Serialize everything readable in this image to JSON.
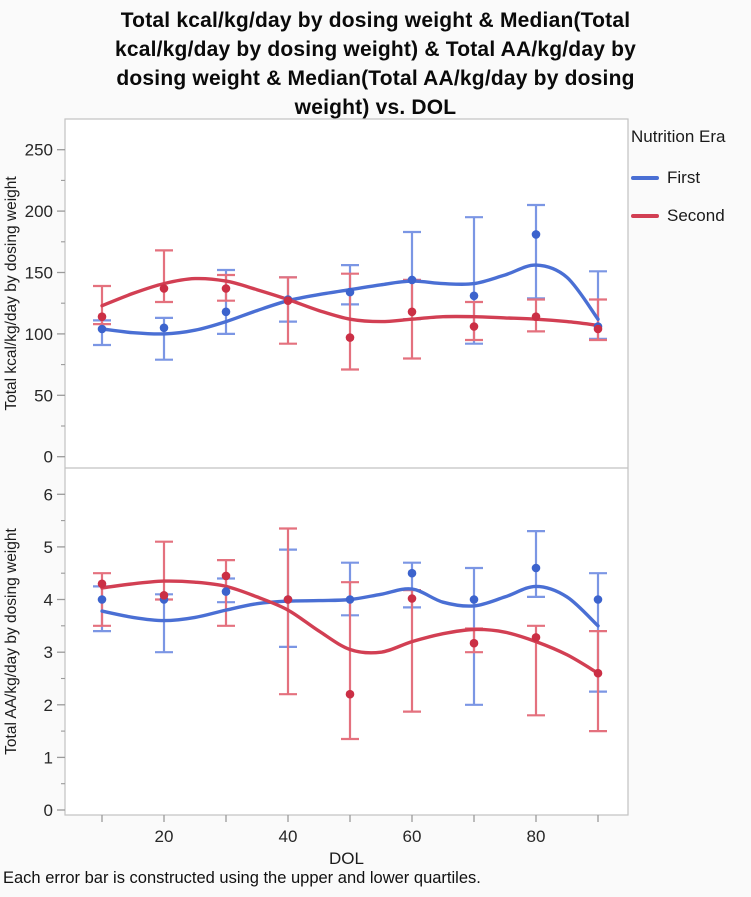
{
  "page": {
    "title_lines": [
      "Total kcal/kg/day by dosing weight & Median(Total",
      "kcal/kg/day by dosing weight) & Total AA/kg/day by",
      "dosing weight & Median(Total AA/kg/day by dosing",
      "weight) vs. DOL"
    ],
    "footnote": "Each error bar is constructed using the upper and lower quartiles."
  },
  "legend": {
    "title": "Nutrition Era",
    "entries": [
      {
        "label": "First",
        "color": "#4a6fd4"
      },
      {
        "label": "Second",
        "color": "#d23f53"
      }
    ]
  },
  "axes": {
    "xlabel": "DOL",
    "xticks": [
      10,
      20,
      30,
      40,
      50,
      60,
      70,
      80,
      90
    ],
    "xtick_labels": [
      20,
      40,
      60,
      80
    ]
  },
  "chart_data": [
    {
      "type": "line",
      "panel": "top",
      "ylabel": "Total kcal/kg/day by dosing weight",
      "ylim": [
        0,
        275
      ],
      "yticks": [
        0,
        50,
        100,
        150,
        200,
        250
      ],
      "yminor_step": 25,
      "grid": false,
      "x": [
        10,
        20,
        30,
        40,
        50,
        60,
        70,
        80,
        90
      ],
      "series": [
        {
          "name": "First",
          "point_color": "#3c63cd",
          "line_color": "#4a6fd4",
          "bar_color": "#7b96e4",
          "median": [
            104,
            105,
            118,
            128,
            134,
            144,
            131,
            181,
            106
          ],
          "q1": [
            91,
            79,
            100,
            110,
            124,
            112,
            92,
            129,
            96
          ],
          "q3": [
            111,
            113,
            152,
            146,
            156,
            183,
            195,
            205,
            151
          ],
          "smooth": {
            "x": [
              10,
              15,
              20,
              25,
              30,
              35,
              40,
              45,
              50,
              55,
              60,
              65,
              70,
              75,
              80,
              85,
              90
            ],
            "y": [
              104,
              101,
              100,
              103,
              110,
              119,
              127,
              132,
              136,
              140,
              143,
              141,
              141,
              148,
              156,
              146,
              112
            ]
          }
        },
        {
          "name": "Second",
          "point_color": "#cb2f45",
          "line_color": "#d23f53",
          "bar_color": "#e4717e",
          "median": [
            114,
            137,
            137,
            127,
            97,
            118,
            106,
            114,
            104
          ],
          "q1": [
            108,
            126,
            127,
            92,
            71,
            80,
            95,
            102,
            95
          ],
          "q3": [
            139,
            168,
            148,
            146,
            149,
            144,
            126,
            128,
            128
          ],
          "smooth": {
            "x": [
              10,
              15,
              20,
              25,
              30,
              35,
              40,
              45,
              50,
              55,
              60,
              65,
              70,
              75,
              80,
              85,
              90
            ],
            "y": [
              123,
              133,
              141,
              145,
              143,
              136,
              128,
              119,
              112,
              110,
              112,
              114,
              114,
              113,
              112,
              110,
              107
            ]
          }
        }
      ]
    },
    {
      "type": "line",
      "panel": "bottom",
      "ylabel": "Total AA/kg/day by dosing weight",
      "ylim": [
        0,
        6.5
      ],
      "yticks": [
        0,
        1,
        2,
        3,
        4,
        5,
        6
      ],
      "yminor_step": 0.5,
      "grid": false,
      "x": [
        10,
        20,
        30,
        40,
        50,
        60,
        70,
        80,
        90
      ],
      "series": [
        {
          "name": "First",
          "point_color": "#3c63cd",
          "line_color": "#4a6fd4",
          "bar_color": "#7b96e4",
          "median": [
            4.0,
            4.0,
            4.15,
            4.0,
            4.0,
            4.5,
            4.0,
            4.6,
            4.0
          ],
          "q1": [
            3.4,
            3.0,
            3.95,
            3.1,
            3.7,
            3.85,
            2.0,
            4.05,
            2.25
          ],
          "q3": [
            4.25,
            4.1,
            4.4,
            4.95,
            4.7,
            4.7,
            4.6,
            5.3,
            4.5
          ],
          "smooth": {
            "x": [
              10,
              15,
              20,
              25,
              30,
              35,
              40,
              45,
              50,
              55,
              60,
              65,
              70,
              75,
              80,
              85,
              90
            ],
            "y": [
              3.78,
              3.66,
              3.6,
              3.66,
              3.8,
              3.92,
              3.97,
              3.98,
              4.0,
              4.1,
              4.2,
              3.95,
              3.88,
              4.05,
              4.25,
              4.05,
              3.5
            ]
          }
        },
        {
          "name": "Second",
          "point_color": "#cb2f45",
          "line_color": "#d23f53",
          "bar_color": "#e4717e",
          "median": [
            4.3,
            4.08,
            4.45,
            4.0,
            2.2,
            4.02,
            3.17,
            3.28,
            2.6
          ],
          "q1": [
            3.5,
            4.0,
            3.5,
            2.2,
            1.35,
            1.87,
            3.0,
            1.8,
            1.5
          ],
          "q3": [
            4.5,
            5.1,
            4.75,
            5.35,
            4.33,
            4.18,
            3.45,
            3.5,
            3.4
          ],
          "smooth": {
            "x": [
              10,
              15,
              20,
              25,
              30,
              35,
              40,
              45,
              50,
              55,
              60,
              65,
              70,
              75,
              80,
              85,
              90
            ],
            "y": [
              4.22,
              4.3,
              4.35,
              4.33,
              4.25,
              4.05,
              3.8,
              3.4,
              3.05,
              3.0,
              3.2,
              3.35,
              3.43,
              3.38,
              3.2,
              2.95,
              2.6
            ]
          }
        }
      ]
    }
  ]
}
